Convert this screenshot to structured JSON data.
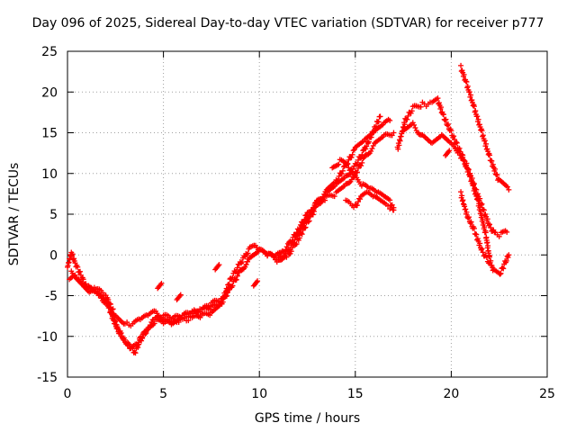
{
  "chart_data": {
    "type": "scatter",
    "title": "Day 096 of 2025, Sidereal Day-to-day VTEC variation (SDTVAR) for receiver p777",
    "xlabel": "GPS time / hours",
    "ylabel": "SDTVAR / TECUs",
    "xlim": [
      0,
      25
    ],
    "ylim": [
      -15,
      25
    ],
    "x_ticks": [
      0,
      5,
      10,
      15,
      20,
      25
    ],
    "y_ticks": [
      -15,
      -10,
      -5,
      0,
      5,
      10,
      15,
      20,
      25
    ],
    "grid": true,
    "marker": "+",
    "color": "#ff0000",
    "series": [
      {
        "x": [
          0.0,
          0.2,
          0.4,
          0.7,
          1.0,
          1.5,
          2.0,
          2.5,
          3.0,
          3.4,
          3.8,
          4.2,
          4.6,
          5.0,
          5.5,
          6.0,
          6.5,
          7.0,
          7.5,
          8.0,
          8.5,
          9.0,
          9.5,
          10.0,
          10.5,
          11.0,
          11.5,
          12.0,
          12.5,
          13.0,
          13.5,
          14.0,
          14.5,
          15.0,
          15.5,
          16.0,
          16.5,
          17.0
        ],
        "y": [
          -1.5,
          0.3,
          -1.0,
          -2.5,
          -4.0,
          -4.2,
          -5.0,
          -7.5,
          -8.5,
          -8.5,
          -8.0,
          -7.5,
          -7.0,
          -8.0,
          -8.5,
          -7.5,
          -7.0,
          -6.8,
          -6.0,
          -5.5,
          -4.0,
          -2.0,
          -0.5,
          0.5,
          0.0,
          -0.8,
          0.5,
          2.5,
          4.5,
          6.5,
          7.0,
          7.5,
          8.5,
          10.0,
          12.0,
          13.5,
          14.5,
          15.0
        ]
      },
      {
        "x": [
          0.1,
          0.4,
          0.8,
          1.2,
          1.7,
          2.2,
          2.6,
          3.0,
          3.3,
          3.6,
          4.0,
          4.5,
          5.0,
          5.5,
          6.0,
          6.5,
          7.0,
          7.5,
          8.0,
          8.5,
          9.0,
          9.5,
          10.0,
          10.5,
          11.0,
          11.5,
          12.0,
          12.5,
          13.0,
          13.5,
          14.0,
          14.5,
          15.0,
          15.5,
          16.0,
          16.3
        ],
        "y": [
          -3.0,
          -2.5,
          -3.5,
          -4.5,
          -5.0,
          -6.5,
          -9.0,
          -10.5,
          -11.5,
          -11.0,
          -9.5,
          -8.0,
          -7.5,
          -7.8,
          -7.5,
          -7.3,
          -6.8,
          -6.5,
          -6.0,
          -4.0,
          -2.0,
          -0.5,
          0.5,
          0.0,
          -0.5,
          0.0,
          1.8,
          4.0,
          6.0,
          7.5,
          8.5,
          9.5,
          11.0,
          13.0,
          15.5,
          17.0
        ]
      },
      {
        "x": [
          0.2,
          0.6,
          1.0,
          1.5,
          2.0,
          2.4,
          2.8,
          3.2,
          3.5,
          3.8,
          4.2,
          4.6,
          5.0,
          5.5,
          6.0,
          6.5,
          7.0,
          7.5,
          8.0,
          8.5,
          9.0,
          9.3,
          9.5,
          9.8,
          10.0,
          10.4,
          10.8,
          11.2,
          11.6,
          12.0,
          12.5,
          13.0,
          13.5,
          14.0,
          14.5,
          15.0,
          15.5,
          16.0,
          16.5,
          16.8
        ],
        "y": [
          -2.0,
          -3.0,
          -4.0,
          -4.5,
          -5.5,
          -8.0,
          -10.0,
          -11.0,
          -12.0,
          -10.5,
          -9.0,
          -8.0,
          -8.5,
          -8.2,
          -8.0,
          -7.8,
          -7.5,
          -7.2,
          -6.0,
          -3.0,
          -1.0,
          0.0,
          0.8,
          1.0,
          0.5,
          0.0,
          -0.3,
          0.3,
          1.5,
          3.0,
          5.0,
          6.5,
          7.8,
          9.0,
          11.0,
          13.0,
          14.0,
          15.0,
          16.0,
          16.5
        ]
      },
      {
        "x": [
          13.8,
          14.2,
          14.6,
          15.0,
          15.4,
          15.8,
          16.2,
          16.5,
          16.8,
          17.0
        ],
        "y": [
          10.5,
          11.5,
          11.0,
          9.5,
          8.5,
          8.0,
          7.5,
          7.0,
          6.5,
          5.5
        ]
      },
      {
        "x": [
          14.5,
          15.0,
          15.3,
          15.6,
          16.0,
          16.3,
          16.6,
          17.0
        ],
        "y": [
          6.5,
          6.0,
          7.0,
          7.5,
          7.0,
          6.5,
          6.0,
          5.8
        ]
      },
      {
        "x": [
          17.2,
          17.6,
          18.0,
          18.5,
          19.0,
          19.3,
          19.6,
          20.0,
          20.3,
          20.6,
          21.0,
          21.4,
          21.8,
          22.0,
          22.2,
          22.5,
          22.8,
          23.0
        ],
        "y": [
          13.0,
          16.5,
          18.0,
          18.5,
          18.5,
          19.0,
          17.0,
          15.0,
          13.5,
          12.0,
          9.5,
          6.5,
          2.5,
          -0.5,
          -2.0,
          -2.5,
          -1.0,
          0.0
        ]
      },
      {
        "x": [
          17.5,
          18.0,
          18.5,
          19.0,
          19.5,
          20.0,
          20.4,
          20.8,
          21.2,
          21.6,
          22.0,
          22.3,
          22.6,
          22.9
        ],
        "y": [
          15.0,
          16.0,
          14.5,
          13.5,
          14.5,
          13.5,
          12.5,
          11.0,
          8.5,
          6.0,
          3.5,
          2.5,
          2.5,
          2.8
        ]
      },
      {
        "x": [
          20.5,
          20.8,
          21.2,
          21.6,
          22.0
        ],
        "y": [
          7.5,
          5.0,
          3.0,
          0.5,
          -1.0
        ]
      },
      {
        "x": [
          20.5,
          20.8,
          21.2,
          21.6,
          22.0,
          22.5,
          23.0
        ],
        "y": [
          23.0,
          21.0,
          18.0,
          15.0,
          12.0,
          9.0,
          8.0
        ]
      }
    ],
    "annotations": [
      {
        "x": 4.8,
        "y": -3.8
      },
      {
        "x": 5.8,
        "y": -5.2
      },
      {
        "x": 7.8,
        "y": -1.5
      },
      {
        "x": 9.8,
        "y": -3.5
      },
      {
        "x": 19.8,
        "y": 12.5
      }
    ]
  }
}
